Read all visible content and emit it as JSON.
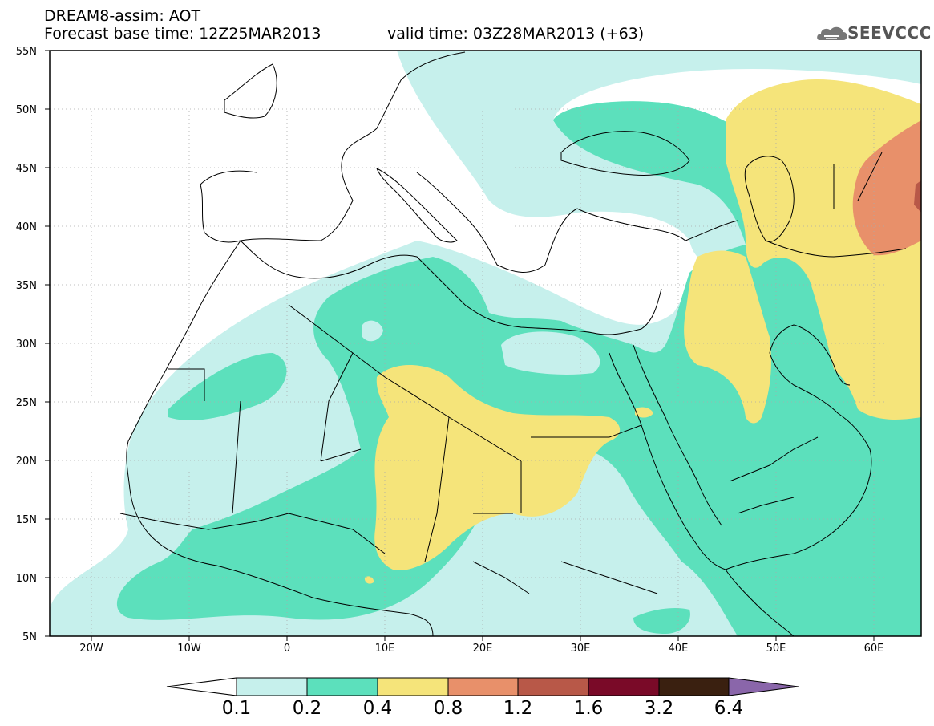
{
  "header": {
    "line1": "DREAM8-assim: AOT",
    "line2_base": "Forecast base time: 12Z25MAR2013",
    "line2_valid": "valid time: 03Z28MAR2013 (+63)"
  },
  "logo": {
    "text": "SEEVCCC",
    "icon": "cloud-icon"
  },
  "axes": {
    "lat_labels": [
      "55N",
      "50N",
      "45N",
      "40N",
      "35N",
      "30N",
      "25N",
      "20N",
      "15N",
      "10N",
      "5N"
    ],
    "lon_labels": [
      "20W",
      "10W",
      "0",
      "10E",
      "20E",
      "30E",
      "40E",
      "50E",
      "60E"
    ]
  },
  "colorbar": {
    "labels": [
      "0.1",
      "0.2",
      "0.4",
      "0.8",
      "1.2",
      "1.6",
      "3.2",
      "6.4"
    ],
    "colors": [
      "#ffffff",
      "#c6f0ec",
      "#5ce0bc",
      "#f5e47a",
      "#e8906a",
      "#b85848",
      "#7a0a28",
      "#3a2010",
      "#8a66aa"
    ]
  },
  "colors": {
    "aot_0_1": "#c6f0ec",
    "aot_0_2": "#5ce0bc",
    "aot_0_4": "#f5e47a",
    "aot_0_8": "#e8906a",
    "aot_1_2": "#b85848"
  }
}
